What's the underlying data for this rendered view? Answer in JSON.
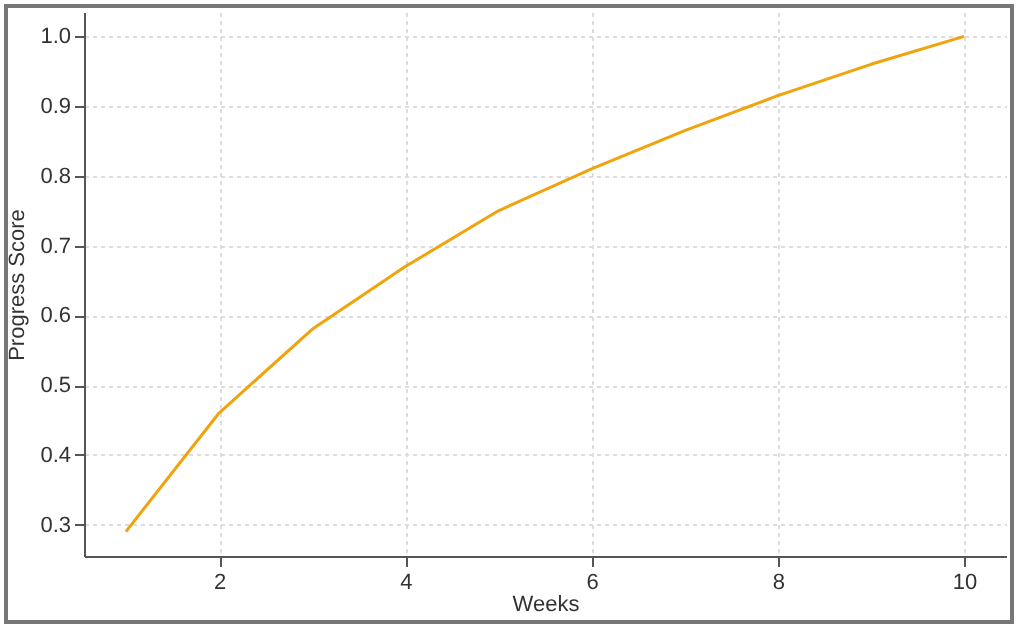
{
  "chart_data": {
    "type": "line",
    "xlabel": "Weeks",
    "ylabel": "Progress Score",
    "x": [
      1,
      2,
      3,
      4,
      5,
      6,
      7,
      8,
      9,
      10
    ],
    "series": [
      {
        "color": "#f0a30a",
        "values": [
          0.29,
          0.46,
          0.58,
          0.67,
          0.75,
          0.81,
          0.865,
          0.915,
          0.96,
          1.0
        ]
      }
    ],
    "xlim": [
      0.55,
      10.45
    ],
    "xticks": [
      2,
      4,
      6,
      8,
      10
    ],
    "ylim": [
      0.255,
      1.035
    ],
    "yticks": [
      0.3,
      0.4,
      0.5,
      0.6,
      0.7,
      0.8,
      0.9,
      {
        "value": 1,
        "label": "1.0"
      }
    ],
    "grid": true,
    "line_style": "solid",
    "marker": "none"
  }
}
